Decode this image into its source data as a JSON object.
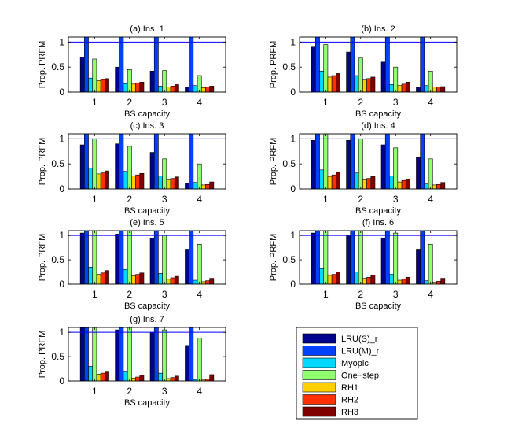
{
  "colors": {
    "background": "#ffffff",
    "axes": "#000000",
    "reference_line": "#0000ff",
    "series": [
      "#00008f",
      "#0040ff",
      "#00d8ff",
      "#90ff70",
      "#ffcf00",
      "#ff3000",
      "#800000"
    ]
  },
  "legend": {
    "entries": [
      "LRU(S)_r",
      "LRU(M)_r",
      "Myopic",
      "One−step",
      "RH1",
      "RH2",
      "RH3"
    ]
  },
  "chart_data": [
    {
      "type": "bar",
      "title": "(a) Ins. 1",
      "xlabel": "BS capacity",
      "ylabel": "Prop. PRFM",
      "categories": [
        "1",
        "2",
        "3",
        "4"
      ],
      "ylim": [
        0,
        1.1
      ],
      "yticks": [
        "0",
        "0.5",
        "1"
      ],
      "reference_line": 1,
      "series": [
        {
          "name": "LRU(S)_r",
          "values": [
            0.7,
            0.5,
            0.42,
            0.1
          ]
        },
        {
          "name": "LRU(M)_r",
          "values": [
            1.1,
            1.1,
            1.1,
            1.1
          ]
        },
        {
          "name": "Myopic",
          "values": [
            0.28,
            0.17,
            0.12,
            0.13
          ]
        },
        {
          "name": "One−step",
          "values": [
            0.66,
            0.45,
            0.43,
            0.33
          ]
        },
        {
          "name": "RH1",
          "values": [
            0.23,
            0.16,
            0.1,
            0.09
          ]
        },
        {
          "name": "RH2",
          "values": [
            0.25,
            0.18,
            0.12,
            0.1
          ]
        },
        {
          "name": "RH3",
          "values": [
            0.27,
            0.2,
            0.15,
            0.12
          ]
        }
      ]
    },
    {
      "type": "bar",
      "title": "(b) Ins. 2",
      "xlabel": "BS capacity",
      "ylabel": "Prop. PRFM",
      "categories": [
        "1",
        "2",
        "3",
        "4"
      ],
      "ylim": [
        0,
        1.1
      ],
      "yticks": [
        "0",
        "0.5",
        "1"
      ],
      "reference_line": 1,
      "series": [
        {
          "name": "LRU(S)_r",
          "values": [
            0.9,
            0.8,
            0.6,
            0.1
          ]
        },
        {
          "name": "LRU(M)_r",
          "values": [
            1.1,
            1.1,
            1.1,
            1.1
          ]
        },
        {
          "name": "Myopic",
          "values": [
            0.42,
            0.33,
            0.15,
            0.13
          ]
        },
        {
          "name": "One−step",
          "values": [
            0.95,
            0.68,
            0.5,
            0.42
          ]
        },
        {
          "name": "RH1",
          "values": [
            0.3,
            0.24,
            0.13,
            0.1
          ]
        },
        {
          "name": "RH2",
          "values": [
            0.33,
            0.27,
            0.16,
            0.1
          ]
        },
        {
          "name": "RH3",
          "values": [
            0.37,
            0.3,
            0.2,
            0.11
          ]
        }
      ]
    },
    {
      "type": "bar",
      "title": "(c) Ins. 3",
      "xlabel": "BS capacity",
      "ylabel": "Prop. PRFM",
      "categories": [
        "1",
        "2",
        "3",
        "4"
      ],
      "ylim": [
        0,
        1.1
      ],
      "yticks": [
        "0",
        "0.5",
        "1"
      ],
      "reference_line": 1,
      "series": [
        {
          "name": "LRU(S)_r",
          "values": [
            0.88,
            0.9,
            0.73,
            0.12
          ]
        },
        {
          "name": "LRU(M)_r",
          "values": [
            1.1,
            1.1,
            1.1,
            1.1
          ]
        },
        {
          "name": "Myopic",
          "values": [
            0.42,
            0.35,
            0.26,
            0.13
          ]
        },
        {
          "name": "One−step",
          "values": [
            1.0,
            0.85,
            0.6,
            0.5
          ]
        },
        {
          "name": "RH1",
          "values": [
            0.3,
            0.26,
            0.18,
            0.08
          ]
        },
        {
          "name": "RH2",
          "values": [
            0.32,
            0.28,
            0.21,
            0.09
          ]
        },
        {
          "name": "RH3",
          "values": [
            0.36,
            0.31,
            0.24,
            0.14
          ]
        }
      ]
    },
    {
      "type": "bar",
      "title": "(d) Ins. 4",
      "xlabel": "BS capacity",
      "ylabel": "Prop. PRFM",
      "categories": [
        "1",
        "2",
        "3",
        "4"
      ],
      "ylim": [
        0,
        1.1
      ],
      "yticks": [
        "0",
        "0.5",
        "1"
      ],
      "reference_line": 1,
      "series": [
        {
          "name": "LRU(S)_r",
          "values": [
            0.97,
            0.97,
            0.88,
            0.63
          ]
        },
        {
          "name": "LRU(M)_r",
          "values": [
            1.1,
            1.1,
            1.1,
            1.1
          ]
        },
        {
          "name": "Myopic",
          "values": [
            0.38,
            0.32,
            0.26,
            0.1
          ]
        },
        {
          "name": "One−step",
          "values": [
            1.1,
            1.0,
            0.82,
            0.6
          ]
        },
        {
          "name": "RH1",
          "values": [
            0.25,
            0.18,
            0.14,
            0.08
          ]
        },
        {
          "name": "RH2",
          "values": [
            0.28,
            0.21,
            0.17,
            0.09
          ]
        },
        {
          "name": "RH3",
          "values": [
            0.33,
            0.25,
            0.2,
            0.13
          ]
        }
      ]
    },
    {
      "type": "bar",
      "title": "(e) Ins. 5",
      "xlabel": "BS capacity",
      "ylabel": "Prop. PRFM",
      "categories": [
        "1",
        "2",
        "3",
        "4"
      ],
      "ylim": [
        0,
        1.1
      ],
      "yticks": [
        "0",
        "0.5",
        "1"
      ],
      "reference_line": 1,
      "series": [
        {
          "name": "LRU(S)_r",
          "values": [
            1.05,
            1.03,
            0.95,
            0.72
          ]
        },
        {
          "name": "LRU(M)_r",
          "values": [
            1.1,
            1.1,
            1.1,
            1.1
          ]
        },
        {
          "name": "Myopic",
          "values": [
            0.35,
            0.3,
            0.22,
            0.08
          ]
        },
        {
          "name": "One−step",
          "values": [
            1.1,
            1.1,
            1.0,
            0.82
          ]
        },
        {
          "name": "RH1",
          "values": [
            0.2,
            0.17,
            0.1,
            0.05
          ]
        },
        {
          "name": "RH2",
          "values": [
            0.23,
            0.2,
            0.13,
            0.07
          ]
        },
        {
          "name": "RH3",
          "values": [
            0.28,
            0.23,
            0.16,
            0.12
          ]
        }
      ]
    },
    {
      "type": "bar",
      "title": "(f) Ins. 6",
      "xlabel": "BS capacity",
      "ylabel": "Prop. PRFM",
      "categories": [
        "1",
        "2",
        "3",
        "4"
      ],
      "ylim": [
        0,
        1.1
      ],
      "yticks": [
        "0",
        "0.5",
        "1"
      ],
      "reference_line": 1,
      "series": [
        {
          "name": "LRU(S)_r",
          "values": [
            1.05,
            1.0,
            0.95,
            0.72
          ]
        },
        {
          "name": "LRU(M)_r",
          "values": [
            1.1,
            1.1,
            1.1,
            1.1
          ]
        },
        {
          "name": "Myopic",
          "values": [
            0.32,
            0.25,
            0.2,
            0.07
          ]
        },
        {
          "name": "One−step",
          "values": [
            1.1,
            1.1,
            1.05,
            0.82
          ]
        },
        {
          "name": "RH1",
          "values": [
            0.18,
            0.12,
            0.08,
            0.04
          ]
        },
        {
          "name": "RH2",
          "values": [
            0.2,
            0.14,
            0.1,
            0.06
          ]
        },
        {
          "name": "RH3",
          "values": [
            0.25,
            0.18,
            0.14,
            0.12
          ]
        }
      ]
    },
    {
      "type": "bar",
      "title": "(g) Ins. 7",
      "xlabel": "BS capacity",
      "ylabel": "Prop. PRFM",
      "categories": [
        "1",
        "2",
        "3",
        "4"
      ],
      "ylim": [
        0,
        1.1
      ],
      "yticks": [
        "0",
        "0.5",
        "1"
      ],
      "reference_line": 1,
      "series": [
        {
          "name": "LRU(S)_r",
          "values": [
            1.1,
            1.05,
            1.0,
            0.73
          ]
        },
        {
          "name": "LRU(M)_r",
          "values": [
            1.1,
            1.1,
            1.1,
            1.1
          ]
        },
        {
          "name": "Myopic",
          "values": [
            0.3,
            0.2,
            0.16,
            0.03
          ]
        },
        {
          "name": "One−step",
          "values": [
            1.1,
            1.1,
            1.05,
            0.88
          ]
        },
        {
          "name": "RH1",
          "values": [
            0.14,
            0.06,
            0.05,
            0.02
          ]
        },
        {
          "name": "RH2",
          "values": [
            0.16,
            0.08,
            0.07,
            0.04
          ]
        },
        {
          "name": "RH3",
          "values": [
            0.2,
            0.12,
            0.1,
            0.13
          ]
        }
      ]
    }
  ]
}
